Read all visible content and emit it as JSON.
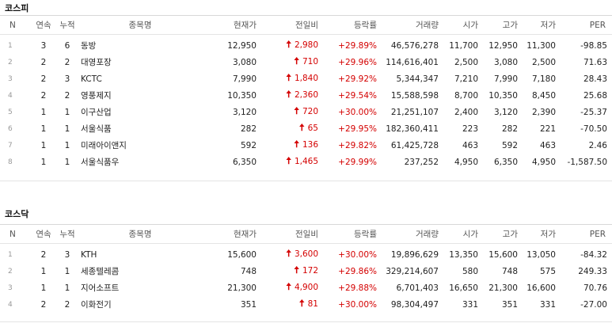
{
  "columns": {
    "n": "N",
    "consecutive": "연속",
    "accumulated": "누적",
    "name": "종목명",
    "price": "현재가",
    "change": "전일비",
    "rate": "등락률",
    "volume": "거래량",
    "open": "시가",
    "high": "고가",
    "low": "저가",
    "per": "PER"
  },
  "up_color": "#d40000",
  "arrow_glyph": "🠅",
  "kospi": {
    "title": "코스피",
    "rows": [
      {
        "n": "1",
        "consecutive": "3",
        "accumulated": "6",
        "name": "동방",
        "price": "12,950",
        "change": "2,980",
        "rate": "+29.89%",
        "volume": "46,576,278",
        "open": "11,700",
        "high": "12,950",
        "low": "11,300",
        "per": "-98.85"
      },
      {
        "n": "2",
        "consecutive": "2",
        "accumulated": "2",
        "name": "대영포장",
        "price": "3,080",
        "change": "710",
        "rate": "+29.96%",
        "volume": "114,616,401",
        "open": "2,500",
        "high": "3,080",
        "low": "2,500",
        "per": "71.63"
      },
      {
        "n": "3",
        "consecutive": "2",
        "accumulated": "3",
        "name": "KCTC",
        "price": "7,990",
        "change": "1,840",
        "rate": "+29.92%",
        "volume": "5,344,347",
        "open": "7,210",
        "high": "7,990",
        "low": "7,180",
        "per": "28.43"
      },
      {
        "n": "4",
        "consecutive": "2",
        "accumulated": "2",
        "name": "영풍제지",
        "price": "10,350",
        "change": "2,360",
        "rate": "+29.54%",
        "volume": "15,588,598",
        "open": "8,700",
        "high": "10,350",
        "low": "8,450",
        "per": "25.68"
      },
      {
        "n": "5",
        "consecutive": "1",
        "accumulated": "1",
        "name": "이구산업",
        "price": "3,120",
        "change": "720",
        "rate": "+30.00%",
        "volume": "21,251,107",
        "open": "2,400",
        "high": "3,120",
        "low": "2,390",
        "per": "-25.37"
      },
      {
        "n": "6",
        "consecutive": "1",
        "accumulated": "1",
        "name": "서울식품",
        "price": "282",
        "change": "65",
        "rate": "+29.95%",
        "volume": "182,360,411",
        "open": "223",
        "high": "282",
        "low": "221",
        "per": "-70.50"
      },
      {
        "n": "7",
        "consecutive": "1",
        "accumulated": "1",
        "name": "미래아이앤지",
        "price": "592",
        "change": "136",
        "rate": "+29.82%",
        "volume": "61,425,728",
        "open": "463",
        "high": "592",
        "low": "463",
        "per": "2.46"
      },
      {
        "n": "8",
        "consecutive": "1",
        "accumulated": "1",
        "name": "서울식품우",
        "price": "6,350",
        "change": "1,465",
        "rate": "+29.99%",
        "volume": "237,252",
        "open": "4,950",
        "high": "6,350",
        "low": "4,950",
        "per": "-1,587.50"
      }
    ]
  },
  "kosdaq": {
    "title": "코스닥",
    "rows": [
      {
        "n": "1",
        "consecutive": "2",
        "accumulated": "3",
        "name": "KTH",
        "price": "15,600",
        "change": "3,600",
        "rate": "+30.00%",
        "volume": "19,896,629",
        "open": "13,350",
        "high": "15,600",
        "low": "13,050",
        "per": "-84.32"
      },
      {
        "n": "2",
        "consecutive": "1",
        "accumulated": "1",
        "name": "세종텔레콤",
        "price": "748",
        "change": "172",
        "rate": "+29.86%",
        "volume": "329,214,607",
        "open": "580",
        "high": "748",
        "low": "575",
        "per": "249.33"
      },
      {
        "n": "3",
        "consecutive": "1",
        "accumulated": "1",
        "name": "지어소프트",
        "price": "21,300",
        "change": "4,900",
        "rate": "+29.88%",
        "volume": "6,701,403",
        "open": "16,650",
        "high": "21,300",
        "low": "16,600",
        "per": "70.76"
      },
      {
        "n": "4",
        "consecutive": "2",
        "accumulated": "2",
        "name": "이화전기",
        "price": "351",
        "change": "81",
        "rate": "+30.00%",
        "volume": "98,304,497",
        "open": "331",
        "high": "351",
        "low": "331",
        "per": "-27.00"
      }
    ]
  }
}
